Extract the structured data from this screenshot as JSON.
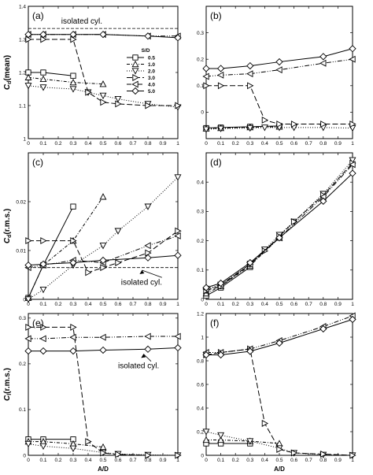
{
  "series_styles": [
    {
      "name": "0.5",
      "marker": "square",
      "dash": ""
    },
    {
      "name": "1.0",
      "marker": "triangle-up",
      "dash": "4,2,1,2"
    },
    {
      "name": "2.0",
      "marker": "triangle-down",
      "dash": "1,2"
    },
    {
      "name": "3.0",
      "marker": "triangle-right",
      "dash": "7,3"
    },
    {
      "name": "4.0",
      "marker": "triangle-left",
      "dash": "6,2,1,2,1,2"
    },
    {
      "name": "5.0",
      "marker": "diamond",
      "dash": ""
    }
  ],
  "chart_data": [
    {
      "id": "a",
      "type": "line",
      "panel_label": "(a)",
      "ylabel_main": "C",
      "ylabel_sub": "d",
      "ylabel_rest": "(mean)",
      "xlabel": "",
      "xlim": [
        0,
        1
      ],
      "ylim": [
        1.0,
        1.4
      ],
      "xticks": [
        "0",
        "0.1",
        "0.2",
        "0.3",
        "0.4",
        "0.5",
        "0.6",
        "0.7",
        "0.8",
        "0.9",
        "1"
      ],
      "yticks": [
        "1",
        "1.1",
        "1.2",
        "1.3",
        "1.4"
      ],
      "reference": {
        "y": 1.333,
        "label": "isolated cyl.",
        "label_pos": [
          0.22,
          1.355
        ]
      },
      "legend": {
        "title": "S/D",
        "placement": "center-right"
      },
      "series": [
        {
          "name": "0.5",
          "x": [
            0,
            0.1,
            0.3
          ],
          "y": [
            1.2,
            1.2,
            1.19
          ]
        },
        {
          "name": "1.0",
          "x": [
            0,
            0.1,
            0.3,
            0.5
          ],
          "y": [
            1.185,
            1.18,
            1.17,
            1.165
          ]
        },
        {
          "name": "2.0",
          "x": [
            0,
            0.1,
            0.3,
            0.4,
            0.5,
            0.6,
            0.8,
            1.0
          ],
          "y": [
            1.16,
            1.155,
            1.15,
            1.14,
            1.13,
            1.12,
            1.105,
            1.095
          ]
        },
        {
          "name": "3.0",
          "x": [
            0,
            0.1,
            0.3,
            0.4,
            0.5,
            0.6,
            0.8,
            1.0
          ],
          "y": [
            1.3,
            1.3,
            1.3,
            1.14,
            1.11,
            1.105,
            1.1,
            1.1
          ]
        },
        {
          "name": "4.0",
          "x": [
            0,
            0.1,
            0.3,
            0.5,
            0.8,
            1.0
          ],
          "y": [
            1.315,
            1.315,
            1.315,
            1.315,
            1.31,
            1.31
          ]
        },
        {
          "name": "5.0",
          "x": [
            0,
            0.1,
            0.3,
            0.5,
            0.8,
            1.0
          ],
          "y": [
            1.315,
            1.315,
            1.315,
            1.315,
            1.31,
            1.305
          ]
        }
      ]
    },
    {
      "id": "b",
      "type": "line",
      "panel_label": "(b)",
      "xlim": [
        0,
        1
      ],
      "ylim": [
        -0.1,
        0.4
      ],
      "xticks": [
        "0",
        "0.1",
        "0.2",
        "0.3",
        "0.4",
        "0.5",
        "0.6",
        "0.7",
        "0.8",
        "0.9",
        "1"
      ],
      "yticks": [
        "0",
        "0.1",
        "0.2",
        "0.3"
      ],
      "ytick_values": [
        0,
        0.1,
        0.2,
        0.3
      ],
      "series": [
        {
          "name": "0.5",
          "x": [
            0,
            0.1,
            0.3,
            0.5
          ],
          "y": [
            -0.06,
            -0.058,
            -0.055,
            -0.052
          ]
        },
        {
          "name": "1.0",
          "x": [
            0,
            0.1,
            0.3,
            0.5
          ],
          "y": [
            -0.062,
            -0.06,
            -0.057,
            -0.055
          ]
        },
        {
          "name": "2.0",
          "x": [
            0,
            0.1,
            0.3,
            0.4,
            0.5,
            0.6,
            0.8,
            1.0
          ],
          "y": [
            -0.065,
            -0.062,
            -0.06,
            -0.058,
            -0.058,
            -0.058,
            -0.058,
            -0.06
          ]
        },
        {
          "name": "3.0",
          "x": [
            0,
            0.1,
            0.3,
            0.4,
            0.5,
            0.6,
            0.8,
            1.0
          ],
          "y": [
            0.1,
            0.1,
            0.1,
            -0.03,
            -0.045,
            -0.045,
            -0.045,
            -0.045
          ]
        },
        {
          "name": "4.0",
          "x": [
            0,
            0.1,
            0.3,
            0.5,
            0.8,
            1.0
          ],
          "y": [
            0.135,
            0.14,
            0.145,
            0.16,
            0.185,
            0.2
          ]
        },
        {
          "name": "5.0",
          "x": [
            0,
            0.1,
            0.3,
            0.5,
            0.8,
            1.0
          ],
          "y": [
            0.165,
            0.165,
            0.175,
            0.19,
            0.21,
            0.24
          ]
        }
      ]
    },
    {
      "id": "c",
      "type": "line",
      "panel_label": "(c)",
      "ylabel_main": "C",
      "ylabel_sub": "d",
      "ylabel_rest": "(r.m.s.)",
      "xlim": [
        0,
        1
      ],
      "ylim": [
        0,
        0.03
      ],
      "xticks": [
        "0",
        "0.1",
        "0.2",
        "0.3",
        "0.4",
        "0.5",
        "0.6",
        "0.7",
        "0.8",
        "0.9",
        "1"
      ],
      "yticks": [
        "0",
        "0.01",
        "0.02"
      ],
      "ytick_values": [
        0,
        0.01,
        0.02
      ],
      "reference": {
        "y": 0.0065,
        "label": "isolated cyl.",
        "label_pos": [
          0.62,
          0.0035
        ],
        "arrow_to": [
          0.76,
          0.0063
        ]
      },
      "series": [
        {
          "name": "0.5",
          "x": [
            0,
            0.1,
            0.3
          ],
          "y": [
            0.0003,
            0.007,
            0.019
          ]
        },
        {
          "name": "1.0",
          "x": [
            0,
            0.1,
            0.3,
            0.5
          ],
          "y": [
            0.0003,
            0.007,
            0.012,
            0.021
          ]
        },
        {
          "name": "2.0",
          "x": [
            0,
            0.1,
            0.3,
            0.5,
            0.6,
            0.8,
            1.0
          ],
          "y": [
            0.0,
            0.002,
            0.007,
            0.011,
            0.014,
            0.019,
            0.025
          ]
        },
        {
          "name": "3.0",
          "x": [
            0,
            0.1,
            0.3,
            0.4,
            0.5,
            0.6,
            0.8,
            1.0
          ],
          "y": [
            0.012,
            0.012,
            0.012,
            0.0055,
            0.0065,
            0.0075,
            0.0095,
            0.014
          ]
        },
        {
          "name": "4.0",
          "x": [
            0,
            0.1,
            0.3,
            0.5,
            0.8,
            1.0
          ],
          "y": [
            0.0065,
            0.007,
            0.008,
            0.0075,
            0.011,
            0.013
          ]
        },
        {
          "name": "5.0",
          "x": [
            0,
            0.1,
            0.3,
            0.5,
            0.8,
            1.0
          ],
          "y": [
            0.007,
            0.0072,
            0.0075,
            0.008,
            0.0085,
            0.009
          ]
        }
      ]
    },
    {
      "id": "d",
      "type": "line",
      "panel_label": "(d)",
      "xlim": [
        0,
        1
      ],
      "ylim": [
        0,
        0.5
      ],
      "xticks": [
        "0",
        "0.1",
        "0.2",
        "0.3",
        "0.4",
        "0.5",
        "0.6",
        "0.7",
        "0.8",
        "0.9",
        "1"
      ],
      "yticks": [
        "0",
        "0.1",
        "0.2",
        "0.3",
        "0.4"
      ],
      "ytick_values": [
        0,
        0.1,
        0.2,
        0.3,
        0.4
      ],
      "series": [
        {
          "name": "0.5",
          "x": [
            0,
            0.1,
            0.3
          ],
          "y": [
            0.012,
            0.04,
            0.11
          ]
        },
        {
          "name": "1.0",
          "x": [
            0,
            0.1,
            0.3,
            0.5
          ],
          "y": [
            0.02,
            0.045,
            0.115,
            0.21
          ]
        },
        {
          "name": "2.0",
          "x": [
            0,
            0.1,
            0.3,
            0.4,
            0.5,
            0.6,
            0.8,
            1.0
          ],
          "y": [
            0.03,
            0.05,
            0.12,
            0.17,
            0.22,
            0.265,
            0.36,
            0.475
          ]
        },
        {
          "name": "3.0",
          "x": [
            0,
            0.1,
            0.3,
            0.4,
            0.5,
            0.6,
            0.8,
            1.0
          ],
          "y": [
            0.03,
            0.045,
            0.12,
            0.165,
            0.215,
            0.265,
            0.355,
            0.465
          ]
        },
        {
          "name": "4.0",
          "x": [
            0,
            0.1,
            0.3,
            0.5,
            0.8,
            1.0
          ],
          "y": [
            0.035,
            0.05,
            0.12,
            0.21,
            0.35,
            0.46
          ]
        },
        {
          "name": "5.0",
          "x": [
            0,
            0.1,
            0.3,
            0.5,
            0.8,
            1.0
          ],
          "y": [
            0.04,
            0.055,
            0.125,
            0.21,
            0.335,
            0.43
          ]
        }
      ]
    },
    {
      "id": "e",
      "type": "line",
      "panel_label": "(e)",
      "ylabel_main": "C",
      "ylabel_sub": "l",
      "ylabel_rest": "(r.m.s.)",
      "xlabel": "A/D",
      "xlim": [
        0,
        1
      ],
      "ylim": [
        0,
        0.31
      ],
      "xticks": [
        "0",
        "0.1",
        "0.2",
        "0.3",
        "0.4",
        "0.5",
        "0.6",
        "0.7",
        "0.8",
        "0.9",
        "1"
      ],
      "yticks": [
        "0",
        "0.1",
        "0.2",
        "0.3"
      ],
      "ytick_values": [
        0,
        0.1,
        0.2,
        0.3
      ],
      "annotation": {
        "label": "isolated cyl.",
        "pos": [
          0.6,
          0.19
        ],
        "arrow_to": [
          0.77,
          0.225
        ]
      },
      "series": [
        {
          "name": "0.5",
          "x": [
            0,
            0.1,
            0.3
          ],
          "y": [
            0.035,
            0.035,
            0.035
          ]
        },
        {
          "name": "1.0",
          "x": [
            0,
            0.1,
            0.3,
            0.5
          ],
          "y": [
            0.03,
            0.03,
            0.025,
            0.018
          ]
        },
        {
          "name": "2.0",
          "x": [
            0,
            0.1,
            0.3,
            0.5,
            0.6,
            0.8,
            1.0
          ],
          "y": [
            0.025,
            0.02,
            0.015,
            0.006,
            0.003,
            0.001,
            0.0
          ]
        },
        {
          "name": "3.0",
          "x": [
            0,
            0.1,
            0.3,
            0.4,
            0.5,
            0.6,
            0.8,
            1.0
          ],
          "y": [
            0.28,
            0.28,
            0.28,
            0.03,
            0.005,
            0.002,
            0.0,
            0.0
          ]
        },
        {
          "name": "4.0",
          "x": [
            0,
            0.1,
            0.3,
            0.5,
            0.8,
            1.0
          ],
          "y": [
            0.255,
            0.255,
            0.258,
            0.258,
            0.26,
            0.26
          ]
        },
        {
          "name": "5.0",
          "x": [
            0,
            0.1,
            0.3,
            0.5,
            0.8,
            1.0
          ],
          "y": [
            0.228,
            0.228,
            0.228,
            0.23,
            0.232,
            0.235
          ]
        }
      ]
    },
    {
      "id": "f",
      "type": "line",
      "panel_label": "(f)",
      "xlabel": "A/D",
      "xlim": [
        0,
        1
      ],
      "ylim": [
        0,
        1.2
      ],
      "xticks": [
        "0",
        "0.1",
        "0.2",
        "0.3",
        "0.4",
        "0.5",
        "0.6",
        "0.7",
        "0.8",
        "0.9",
        "1"
      ],
      "yticks": [
        "0",
        "0.2",
        "0.4",
        "0.6",
        "0.8",
        "1",
        "1.2"
      ],
      "ytick_values": [
        0,
        0.2,
        0.4,
        0.6,
        0.8,
        1.0,
        1.2
      ],
      "series": [
        {
          "name": "0.5",
          "x": [
            0,
            0.1,
            0.3
          ],
          "y": [
            0.1,
            0.1,
            0.1
          ]
        },
        {
          "name": "1.0",
          "x": [
            0,
            0.1,
            0.3,
            0.5
          ],
          "y": [
            0.13,
            0.13,
            0.12,
            0.1
          ]
        },
        {
          "name": "2.0",
          "x": [
            0,
            0.1,
            0.3,
            0.5,
            0.6,
            0.8,
            1.0
          ],
          "y": [
            0.2,
            0.17,
            0.12,
            0.06,
            0.02,
            0.005,
            0.0
          ]
        },
        {
          "name": "3.0",
          "x": [
            0,
            0.1,
            0.3,
            0.4,
            0.5,
            0.6,
            0.8,
            1.0
          ],
          "y": [
            0.85,
            0.87,
            0.9,
            0.27,
            0.05,
            0.02,
            0.01,
            0.0
          ]
        },
        {
          "name": "4.0",
          "x": [
            0,
            0.1,
            0.3,
            0.5,
            0.8,
            1.0
          ],
          "y": [
            0.87,
            0.87,
            0.9,
            0.97,
            1.09,
            1.18
          ]
        },
        {
          "name": "5.0",
          "x": [
            0,
            0.1,
            0.3,
            0.5,
            0.8,
            1.0
          ],
          "y": [
            0.85,
            0.85,
            0.88,
            0.95,
            1.07,
            1.15
          ]
        }
      ]
    }
  ]
}
